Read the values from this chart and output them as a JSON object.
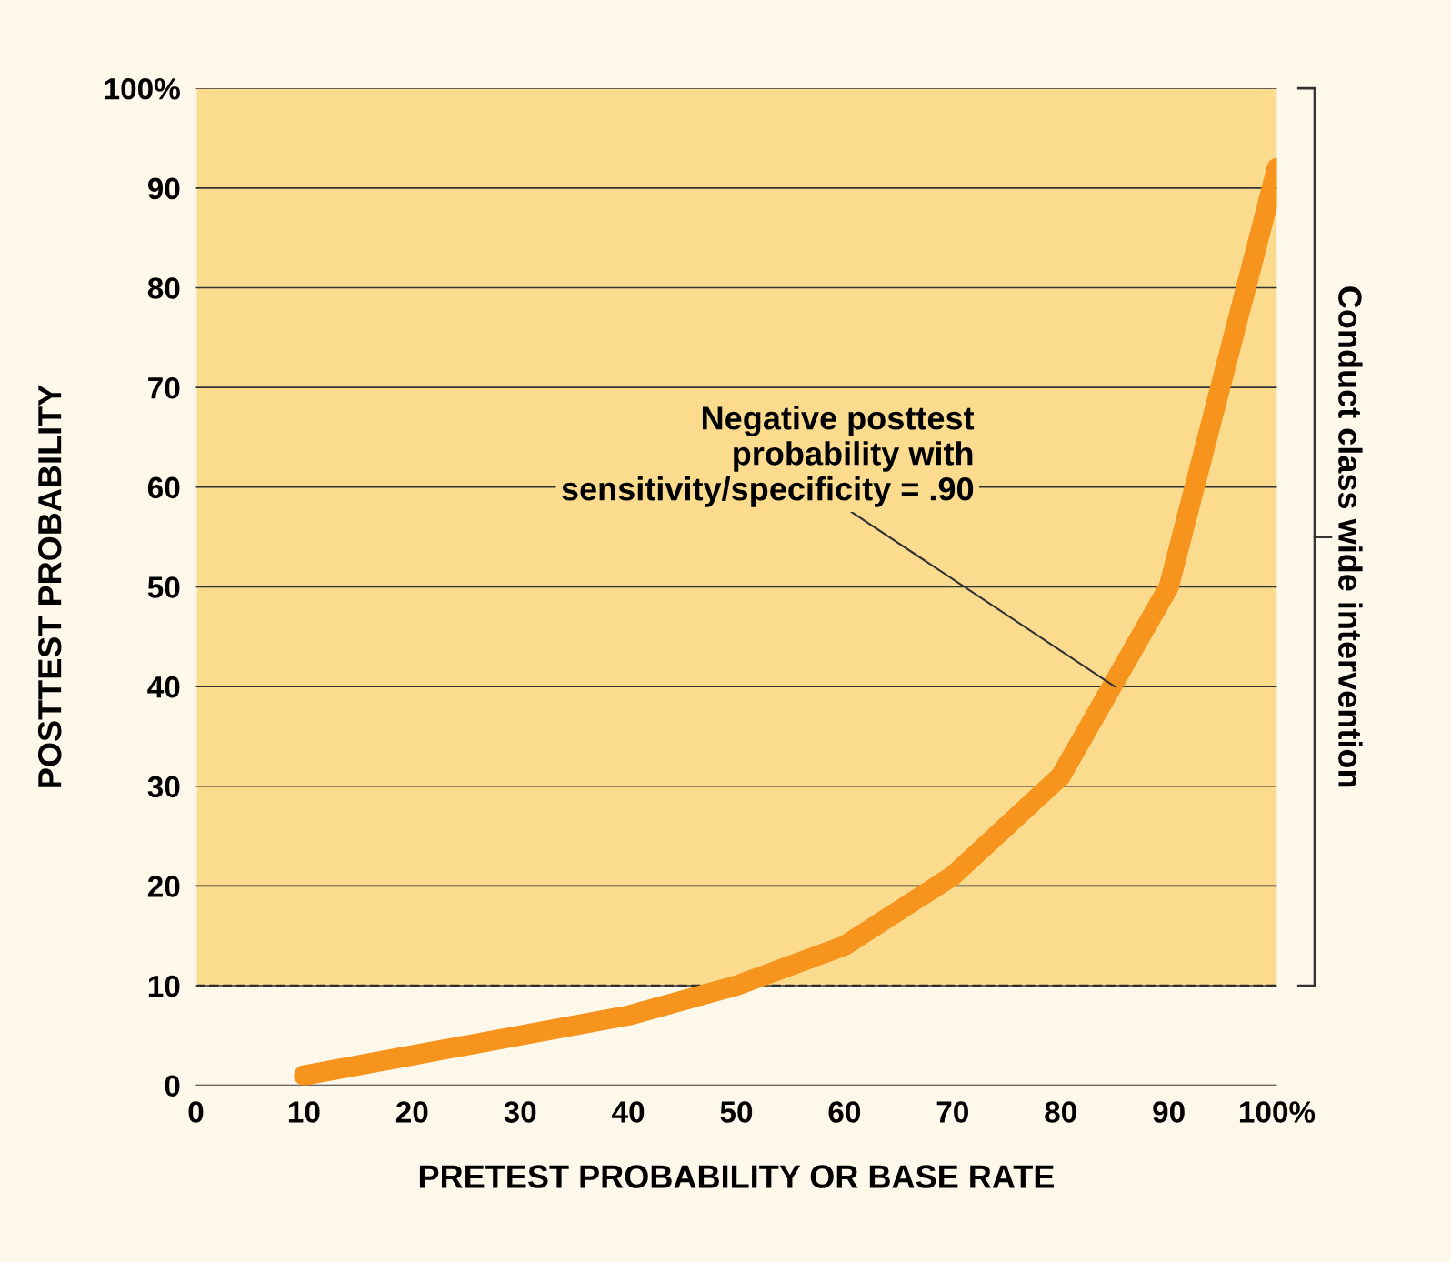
{
  "chart_data": {
    "type": "line",
    "xlabel": "PRETEST PROBABILITY OR BASE RATE",
    "ylabel": "POSTTEST PROBABILITY",
    "x": [
      10,
      20,
      30,
      40,
      50,
      60,
      70,
      80,
      90,
      100
    ],
    "series": [
      {
        "color": "#f7941d",
        "values": [
          1,
          3,
          5,
          7,
          10,
          14,
          21,
          31,
          50,
          92
        ]
      }
    ],
    "xlim": [
      0,
      100
    ],
    "ylim": [
      0,
      100
    ],
    "xticks": [
      0,
      10,
      20,
      30,
      40,
      50,
      60,
      70,
      80,
      90,
      {
        "value": 100,
        "label": "100%"
      }
    ],
    "yticks": [
      0,
      10,
      20,
      30,
      40,
      50,
      60,
      70,
      80,
      90,
      {
        "value": 100,
        "label": "100%"
      }
    ],
    "grid": "y",
    "marker": "none",
    "line_style": "solid",
    "bands": [
      {
        "axis": "y",
        "from": 10,
        "to": 100,
        "label": "Conduct class wide intervention",
        "color": "#fbdc8f"
      }
    ],
    "ref_lines": [
      {
        "axis": "y",
        "value": 10,
        "line_style": "dashed",
        "color": "#222222"
      }
    ],
    "annotations": [
      {
        "text": "Negative posttest\nprobability with\nsensitivity/specificity = .90",
        "x": 85,
        "y": 40
      }
    ]
  }
}
